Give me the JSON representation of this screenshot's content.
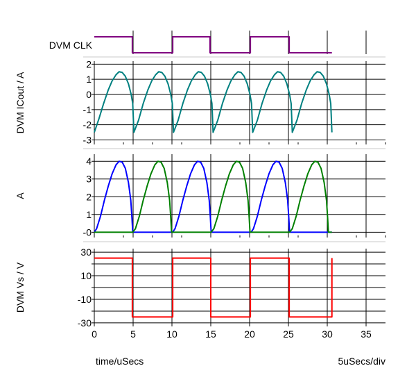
{
  "chart_data": {
    "type": "line",
    "footer": {
      "x_label": "time/uSecs",
      "scale_label": "5uSecs/div"
    },
    "x_axis": {
      "ticks": [
        0,
        5,
        10,
        15,
        20,
        25,
        30,
        35
      ],
      "range": [
        0,
        37.5
      ]
    },
    "panels": [
      {
        "id": "clk",
        "ylabel": "DVM CLK",
        "ylim": [
          0,
          1
        ],
        "yticks": [],
        "series": [
          {
            "name": "DVM CLK",
            "color": "#800080",
            "points": [
              [
                0,
                1
              ],
              [
                4.9,
                1
              ],
              [
                4.9,
                0
              ],
              [
                10.1,
                0
              ],
              [
                10.1,
                1
              ],
              [
                14.9,
                1
              ],
              [
                14.9,
                0
              ],
              [
                20.1,
                0
              ],
              [
                20.1,
                1
              ],
              [
                25.1,
                1
              ],
              [
                25.1,
                0
              ],
              [
                30.6,
                0
              ]
            ]
          }
        ]
      },
      {
        "id": "icout",
        "ylabel": "DVM ICout / A",
        "ylim": [
          -3.3,
          2.2
        ],
        "yticks": [
          2,
          1,
          0,
          -1,
          -2,
          -3
        ],
        "series": [
          {
            "name": "DVM ICout",
            "color": "#008080",
            "points": [
              [
                0,
                -2.5
              ],
              [
                0.6,
                -1.6
              ],
              [
                1.2,
                -0.6
              ],
              [
                1.8,
                0.3
              ],
              [
                2.3,
                0.9
              ],
              [
                2.8,
                1.3
              ],
              [
                3.2,
                1.5
              ],
              [
                3.6,
                1.45
              ],
              [
                4.0,
                1.2
              ],
              [
                4.4,
                0.7
              ],
              [
                4.75,
                0
              ],
              [
                4.95,
                -0.6
              ],
              [
                5.1,
                -2.5
              ],
              [
                5.7,
                -1.7
              ],
              [
                6.3,
                -0.6
              ],
              [
                6.9,
                0.3
              ],
              [
                7.4,
                0.9
              ],
              [
                7.9,
                1.3
              ],
              [
                8.3,
                1.5
              ],
              [
                8.7,
                1.45
              ],
              [
                9.1,
                1.2
              ],
              [
                9.5,
                0.7
              ],
              [
                9.85,
                0
              ],
              [
                10.05,
                -0.6
              ],
              [
                10.2,
                -2.5
              ],
              [
                10.8,
                -1.7
              ],
              [
                11.4,
                -0.6
              ],
              [
                12.0,
                0.3
              ],
              [
                12.5,
                0.9
              ],
              [
                13.0,
                1.3
              ],
              [
                13.4,
                1.5
              ],
              [
                13.8,
                1.45
              ],
              [
                14.2,
                1.2
              ],
              [
                14.6,
                0.7
              ],
              [
                14.95,
                0
              ],
              [
                15.15,
                -0.6
              ],
              [
                15.3,
                -2.5
              ],
              [
                15.9,
                -1.7
              ],
              [
                16.5,
                -0.6
              ],
              [
                17.1,
                0.3
              ],
              [
                17.6,
                0.9
              ],
              [
                18.1,
                1.3
              ],
              [
                18.5,
                1.5
              ],
              [
                18.9,
                1.45
              ],
              [
                19.3,
                1.2
              ],
              [
                19.7,
                0.7
              ],
              [
                20.05,
                0
              ],
              [
                20.25,
                -0.6
              ],
              [
                20.4,
                -2.5
              ],
              [
                21.0,
                -1.7
              ],
              [
                21.6,
                -0.6
              ],
              [
                22.2,
                0.3
              ],
              [
                22.7,
                0.9
              ],
              [
                23.2,
                1.3
              ],
              [
                23.6,
                1.5
              ],
              [
                24.0,
                1.45
              ],
              [
                24.4,
                1.2
              ],
              [
                24.8,
                0.7
              ],
              [
                25.15,
                0
              ],
              [
                25.35,
                -0.6
              ],
              [
                25.5,
                -2.5
              ],
              [
                26.1,
                -1.7
              ],
              [
                26.7,
                -0.6
              ],
              [
                27.3,
                0.3
              ],
              [
                27.8,
                0.9
              ],
              [
                28.3,
                1.3
              ],
              [
                28.7,
                1.5
              ],
              [
                29.1,
                1.45
              ],
              [
                29.5,
                1.2
              ],
              [
                29.9,
                0.7
              ],
              [
                30.25,
                0
              ],
              [
                30.45,
                -0.6
              ],
              [
                30.6,
                -2.5
              ]
            ]
          }
        ]
      },
      {
        "id": "currents",
        "ylabel": "A",
        "ylim": [
          -0.3,
          4.4
        ],
        "yticks": [
          4,
          3,
          2,
          1,
          0
        ],
        "ytick_labels": [
          "4",
          "3",
          "2",
          "1",
          "-0"
        ],
        "series": [
          {
            "name": "blue",
            "color": "#0000ff",
            "points": [
              [
                0,
                0
              ],
              [
                0.3,
                0.2
              ],
              [
                0.8,
                0.9
              ],
              [
                1.3,
                1.8
              ],
              [
                1.8,
                2.6
              ],
              [
                2.3,
                3.3
              ],
              [
                2.8,
                3.8
              ],
              [
                3.2,
                4.0
              ],
              [
                3.6,
                3.95
              ],
              [
                4.0,
                3.6
              ],
              [
                4.4,
                2.8
              ],
              [
                4.7,
                1.8
              ],
              [
                4.85,
                0.8
              ],
              [
                4.95,
                0
              ],
              [
                10.1,
                0
              ],
              [
                10.4,
                0.2
              ],
              [
                10.9,
                0.9
              ],
              [
                11.4,
                1.8
              ],
              [
                11.9,
                2.6
              ],
              [
                12.4,
                3.3
              ],
              [
                12.9,
                3.8
              ],
              [
                13.3,
                4.0
              ],
              [
                13.7,
                3.95
              ],
              [
                14.1,
                3.6
              ],
              [
                14.5,
                2.8
              ],
              [
                14.8,
                1.8
              ],
              [
                14.95,
                0.8
              ],
              [
                15.05,
                0
              ],
              [
                20.2,
                0
              ],
              [
                20.5,
                0.2
              ],
              [
                21.0,
                0.9
              ],
              [
                21.5,
                1.8
              ],
              [
                22.0,
                2.6
              ],
              [
                22.5,
                3.3
              ],
              [
                23.0,
                3.8
              ],
              [
                23.4,
                4.0
              ],
              [
                23.8,
                3.95
              ],
              [
                24.2,
                3.6
              ],
              [
                24.6,
                2.8
              ],
              [
                24.9,
                1.8
              ],
              [
                25.05,
                0.8
              ],
              [
                25.15,
                0
              ],
              [
                30.6,
                0
              ]
            ]
          },
          {
            "name": "green",
            "color": "#008000",
            "points": [
              [
                0,
                0
              ],
              [
                4.95,
                0
              ],
              [
                5.3,
                0.2
              ],
              [
                5.8,
                0.9
              ],
              [
                6.3,
                1.8
              ],
              [
                6.8,
                2.6
              ],
              [
                7.3,
                3.3
              ],
              [
                7.8,
                3.8
              ],
              [
                8.2,
                4.0
              ],
              [
                8.6,
                3.95
              ],
              [
                9.0,
                3.6
              ],
              [
                9.4,
                2.8
              ],
              [
                9.7,
                1.8
              ],
              [
                9.85,
                0.8
              ],
              [
                9.95,
                0
              ],
              [
                15.05,
                0
              ],
              [
                15.4,
                0.2
              ],
              [
                15.9,
                0.9
              ],
              [
                16.4,
                1.8
              ],
              [
                16.9,
                2.6
              ],
              [
                17.4,
                3.3
              ],
              [
                17.9,
                3.8
              ],
              [
                18.3,
                4.0
              ],
              [
                18.7,
                3.95
              ],
              [
                19.1,
                3.6
              ],
              [
                19.5,
                2.8
              ],
              [
                19.8,
                1.8
              ],
              [
                19.95,
                0.8
              ],
              [
                20.05,
                0
              ],
              [
                25.15,
                0
              ],
              [
                25.5,
                0.2
              ],
              [
                26.0,
                0.9
              ],
              [
                26.5,
                1.8
              ],
              [
                27.0,
                2.6
              ],
              [
                27.5,
                3.3
              ],
              [
                28.0,
                3.8
              ],
              [
                28.4,
                4.0
              ],
              [
                28.8,
                3.95
              ],
              [
                29.2,
                3.6
              ],
              [
                29.6,
                2.8
              ],
              [
                29.9,
                1.8
              ],
              [
                30.05,
                0.8
              ],
              [
                30.15,
                0
              ],
              [
                30.6,
                0
              ]
            ]
          }
        ]
      },
      {
        "id": "vs",
        "ylabel": "DVM Vs / V",
        "ylim": [
          -33,
          33
        ],
        "yticks": [
          30,
          20,
          10,
          0,
          -10,
          -20,
          -30
        ],
        "ytick_labels": [
          "30",
          "",
          "10",
          "",
          "-10",
          "",
          "-30"
        ],
        "series": [
          {
            "name": "DVM Vs",
            "color": "#ff0000",
            "points": [
              [
                0,
                25
              ],
              [
                4.9,
                25
              ],
              [
                4.9,
                -25
              ],
              [
                10.1,
                -25
              ],
              [
                10.1,
                25
              ],
              [
                15.0,
                25
              ],
              [
                15.0,
                -25
              ],
              [
                20.1,
                -25
              ],
              [
                20.1,
                25
              ],
              [
                25.1,
                25
              ],
              [
                25.1,
                -25
              ],
              [
                30.6,
                -25
              ],
              [
                30.6,
                25
              ]
            ]
          }
        ]
      }
    ]
  }
}
